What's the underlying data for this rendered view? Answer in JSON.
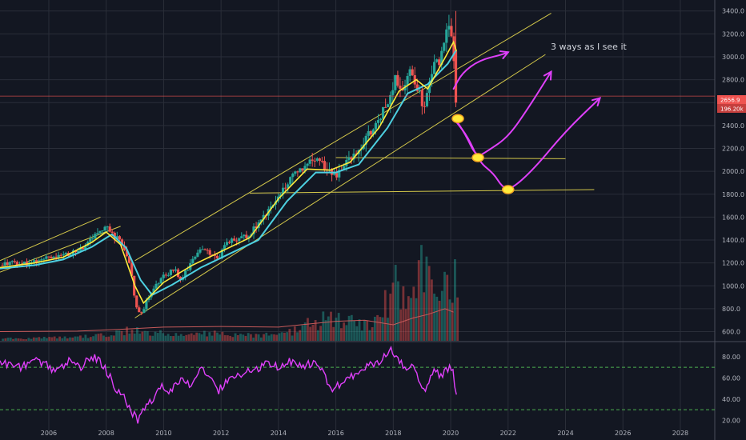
{
  "chart_data": {
    "type": "candlestick",
    "title": "",
    "annotation": "3 ways as I see it",
    "x_axis": {
      "tick_labels": [
        "2006",
        "2008",
        "2010",
        "2012",
        "2014",
        "2016",
        "2018",
        "2020",
        "2022",
        "2024",
        "2026",
        "2028"
      ],
      "range": [
        2004.3,
        2029.2
      ]
    },
    "y_axis": {
      "tick_labels": [
        "600.0",
        "800.0",
        "1000.0",
        "1200.0",
        "1400.0",
        "1600.0",
        "1800.0",
        "2000.0",
        "2200.0",
        "2400.0",
        "2600.0",
        "2800.0",
        "3000.0",
        "3200.0",
        "3400.0"
      ],
      "range": [
        520,
        3440
      ]
    },
    "price_tags": {
      "last_price": "2656.9",
      "change": "196.20k",
      "last_price_value": 2656.9
    },
    "price_path": [
      [
        2004.3,
        1180
      ],
      [
        2004.8,
        1200
      ],
      [
        2005.2,
        1190
      ],
      [
        2005.6,
        1220
      ],
      [
        2006.0,
        1250
      ],
      [
        2006.5,
        1270
      ],
      [
        2007.0,
        1300
      ],
      [
        2007.4,
        1380
      ],
      [
        2007.8,
        1500
      ],
      [
        2008.0,
        1520
      ],
      [
        2008.2,
        1450
      ],
      [
        2008.45,
        1400
      ],
      [
        2008.7,
        1280
      ],
      [
        2008.85,
        1160
      ],
      [
        2008.95,
        950
      ],
      [
        2009.1,
        780
      ],
      [
        2009.25,
        760
      ],
      [
        2009.45,
        900
      ],
      [
        2009.7,
        1000
      ],
      [
        2010.0,
        1080
      ],
      [
        2010.4,
        1150
      ],
      [
        2010.6,
        1050
      ],
      [
        2010.9,
        1180
      ],
      [
        2011.3,
        1320
      ],
      [
        2011.6,
        1280
      ],
      [
        2011.9,
        1240
      ],
      [
        2012.2,
        1380
      ],
      [
        2012.6,
        1400
      ],
      [
        2013.0,
        1450
      ],
      [
        2013.4,
        1580
      ],
      [
        2013.8,
        1720
      ],
      [
        2014.2,
        1850
      ],
      [
        2014.6,
        1980
      ],
      [
        2015.0,
        2060
      ],
      [
        2015.4,
        2100
      ],
      [
        2015.7,
        2020
      ],
      [
        2016.0,
        1940
      ],
      [
        2016.3,
        2080
      ],
      [
        2016.7,
        2160
      ],
      [
        2017.0,
        2270
      ],
      [
        2017.4,
        2400
      ],
      [
        2017.8,
        2600
      ],
      [
        2018.1,
        2820
      ],
      [
        2018.3,
        2700
      ],
      [
        2018.6,
        2880
      ],
      [
        2018.9,
        2700
      ],
      [
        2019.05,
        2500
      ],
      [
        2019.3,
        2860
      ],
      [
        2019.6,
        2980
      ],
      [
        2019.9,
        3220
      ],
      [
        2020.05,
        3230
      ],
      [
        2020.18,
        2580
      ]
    ],
    "ma_fast": [
      [
        2004.3,
        1160
      ],
      [
        2005.5,
        1200
      ],
      [
        2006.5,
        1250
      ],
      [
        2007.5,
        1380
      ],
      [
        2008.0,
        1470
      ],
      [
        2008.5,
        1360
      ],
      [
        2009.0,
        1000
      ],
      [
        2009.3,
        850
      ],
      [
        2010.0,
        1030
      ],
      [
        2011.0,
        1180
      ],
      [
        2012.0,
        1300
      ],
      [
        2013.0,
        1420
      ],
      [
        2014.0,
        1760
      ],
      [
        2015.0,
        2020
      ],
      [
        2015.8,
        2010
      ],
      [
        2016.5,
        2080
      ],
      [
        2017.5,
        2380
      ],
      [
        2018.2,
        2700
      ],
      [
        2018.8,
        2800
      ],
      [
        2019.2,
        2720
      ],
      [
        2019.8,
        2990
      ],
      [
        2020.1,
        3130
      ],
      [
        2020.2,
        3050
      ]
    ],
    "ma_slow": [
      [
        2004.3,
        1150
      ],
      [
        2005.5,
        1180
      ],
      [
        2006.5,
        1230
      ],
      [
        2007.5,
        1340
      ],
      [
        2008.2,
        1450
      ],
      [
        2008.7,
        1330
      ],
      [
        2009.2,
        1050
      ],
      [
        2009.6,
        920
      ],
      [
        2010.3,
        1010
      ],
      [
        2011.3,
        1160
      ],
      [
        2012.3,
        1280
      ],
      [
        2013.3,
        1400
      ],
      [
        2014.3,
        1740
      ],
      [
        2015.3,
        1990
      ],
      [
        2016.0,
        1990
      ],
      [
        2016.8,
        2060
      ],
      [
        2017.8,
        2380
      ],
      [
        2018.5,
        2680
      ],
      [
        2019.2,
        2760
      ],
      [
        2019.9,
        2940
      ],
      [
        2020.2,
        3060
      ]
    ],
    "volume_ma": [
      [
        2004.3,
        600
      ],
      [
        2007.0,
        605
      ],
      [
        2008.5,
        620
      ],
      [
        2010.0,
        640
      ],
      [
        2012.0,
        645
      ],
      [
        2014.0,
        640
      ],
      [
        2016.0,
        690
      ],
      [
        2017.0,
        700
      ],
      [
        2018.0,
        660
      ],
      [
        2018.7,
        720
      ],
      [
        2019.2,
        750
      ],
      [
        2019.8,
        800
      ],
      [
        2020.1,
        770
      ]
    ],
    "trend_lines": [
      [
        [
          2004.3,
          1220
        ],
        [
          2007.8,
          1600
        ]
      ],
      [
        [
          2004.3,
          1120
        ],
        [
          2008.5,
          1520
        ]
      ],
      [
        [
          2009.0,
          1220
        ],
        [
          2023.5,
          3380
        ]
      ],
      [
        [
          2009.0,
          720
        ],
        [
          2023.3,
          3020
        ]
      ],
      [
        [
          2016.0,
          2120
        ],
        [
          2024.0,
          2110
        ]
      ],
      [
        [
          2013.0,
          1810
        ],
        [
          2025.0,
          1840
        ]
      ]
    ],
    "projections": [
      [
        [
          2020.1,
          2720
        ],
        [
          2020.4,
          2860
        ],
        [
          2021.0,
          2970
        ],
        [
          2021.8,
          3020
        ],
        [
          2022.0,
          3040
        ]
      ],
      [
        [
          2020.1,
          2480
        ],
        [
          2020.5,
          2330
        ],
        [
          2020.9,
          2120
        ],
        [
          2021.3,
          2180
        ],
        [
          2022.0,
          2300
        ],
        [
          2022.7,
          2550
        ],
        [
          2023.5,
          2870
        ]
      ],
      [
        [
          2020.2,
          2430
        ],
        [
          2020.6,
          2300
        ],
        [
          2021.0,
          2080
        ],
        [
          2021.5,
          1980
        ],
        [
          2021.8,
          1860
        ],
        [
          2022.1,
          1840
        ],
        [
          2022.9,
          2020
        ],
        [
          2024.0,
          2350
        ],
        [
          2025.2,
          2640
        ]
      ]
    ],
    "markers": [
      [
        2020.25,
        2460
      ],
      [
        2020.95,
        2120
      ],
      [
        2022.0,
        1840
      ]
    ],
    "rsi": {
      "y_tick_labels": [
        "20.00",
        "40.00",
        "60.00",
        "80.00"
      ],
      "range": [
        15,
        92
      ],
      "levels": [
        70,
        30
      ],
      "values": [
        [
          2004.3,
          75
        ],
        [
          2004.7,
          72
        ],
        [
          2005.1,
          70
        ],
        [
          2005.5,
          78
        ],
        [
          2005.9,
          72
        ],
        [
          2006.3,
          66
        ],
        [
          2006.7,
          76
        ],
        [
          2007.1,
          70
        ],
        [
          2007.5,
          80
        ],
        [
          2007.8,
          75
        ],
        [
          2008.1,
          62
        ],
        [
          2008.35,
          50
        ],
        [
          2008.6,
          44
        ],
        [
          2008.8,
          32
        ],
        [
          2009.0,
          24
        ],
        [
          2009.1,
          20
        ],
        [
          2009.3,
          30
        ],
        [
          2009.6,
          40
        ],
        [
          2009.9,
          52
        ],
        [
          2010.2,
          46
        ],
        [
          2010.6,
          58
        ],
        [
          2010.9,
          54
        ],
        [
          2011.3,
          68
        ],
        [
          2011.6,
          62
        ],
        [
          2011.9,
          48
        ],
        [
          2012.3,
          58
        ],
        [
          2012.8,
          64
        ],
        [
          2013.2,
          68
        ],
        [
          2013.6,
          74
        ],
        [
          2014.0,
          70
        ],
        [
          2014.4,
          76
        ],
        [
          2014.8,
          72
        ],
        [
          2015.3,
          74
        ],
        [
          2015.6,
          62
        ],
        [
          2015.9,
          48
        ],
        [
          2016.3,
          58
        ],
        [
          2016.7,
          64
        ],
        [
          2017.1,
          72
        ],
        [
          2017.5,
          76
        ],
        [
          2017.9,
          86
        ],
        [
          2018.1,
          80
        ],
        [
          2018.4,
          70
        ],
        [
          2018.7,
          74
        ],
        [
          2018.9,
          54
        ],
        [
          2019.1,
          46
        ],
        [
          2019.4,
          66
        ],
        [
          2019.7,
          62
        ],
        [
          2020.0,
          70
        ],
        [
          2020.1,
          64
        ],
        [
          2020.2,
          42
        ]
      ]
    },
    "volume": {
      "range": [
        0,
        4000
      ],
      "bars": [
        [
          2004.5,
          40
        ],
        [
          2005.0,
          30
        ],
        [
          2005.5,
          35
        ],
        [
          2006.0,
          40
        ],
        [
          2006.5,
          45
        ],
        [
          2007.0,
          50
        ],
        [
          2007.5,
          60
        ],
        [
          2008.0,
          80
        ],
        [
          2008.5,
          120
        ],
        [
          2009.0,
          150
        ],
        [
          2009.5,
          110
        ],
        [
          2010.0,
          90
        ],
        [
          2010.5,
          70
        ],
        [
          2011.0,
          80
        ],
        [
          2011.5,
          100
        ],
        [
          2012.0,
          90
        ],
        [
          2012.5,
          85
        ],
        [
          2013.0,
          80
        ],
        [
          2013.5,
          75
        ],
        [
          2014.0,
          80
        ],
        [
          2014.5,
          120
        ],
        [
          2015.0,
          200
        ],
        [
          2015.5,
          260
        ],
        [
          2016.0,
          280
        ],
        [
          2016.5,
          240
        ],
        [
          2017.0,
          200
        ],
        [
          2017.5,
          300
        ],
        [
          2017.9,
          600
        ],
        [
          2018.1,
          900
        ],
        [
          2018.3,
          700
        ],
        [
          2018.6,
          750
        ],
        [
          2018.9,
          900
        ],
        [
          2019.1,
          800
        ],
        [
          2019.3,
          650
        ],
        [
          2019.6,
          700
        ],
        [
          2019.9,
          600
        ],
        [
          2020.1,
          850
        ],
        [
          2020.2,
          700
        ]
      ]
    }
  },
  "colors": {
    "background": "#131722",
    "grid": "#2a2e39",
    "up_candle": "#26a69a",
    "down_candle": "#ef5350",
    "ma_fast": "#ffeb3b",
    "ma_slow": "#4dd0e1",
    "trend_line": "#d4c84a",
    "projection": "#e040fb",
    "marker": "#ffeb3b",
    "rsi_line": "#e040fb",
    "rsi_level": "#4caf50",
    "price_line": "#ef5350",
    "tag_bg": "#ef5350",
    "axis_text": "#b2b5be"
  }
}
